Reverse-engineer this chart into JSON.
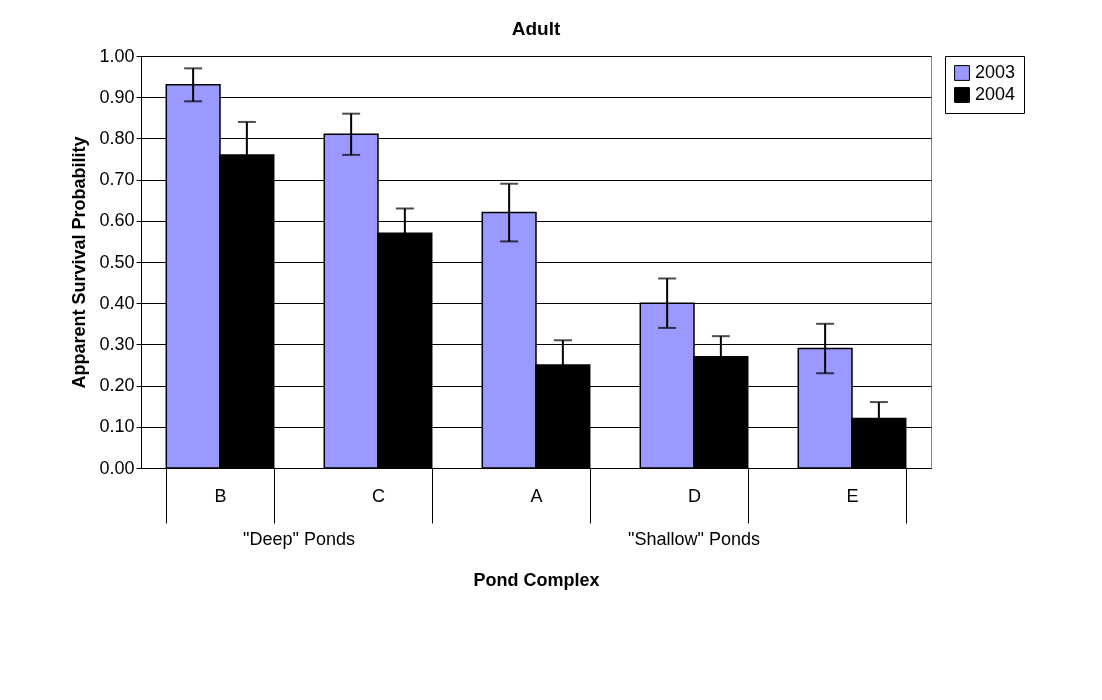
{
  "chart_data": {
    "type": "bar",
    "title": "Adult",
    "xlabel": "Pond Complex",
    "ylabel": "Apparent Survival Probability",
    "categories": [
      "B",
      "C",
      "A",
      "D",
      "E"
    ],
    "series": [
      {
        "name": "2003",
        "color": "#9999ff",
        "values": [
          0.93,
          0.81,
          0.62,
          0.4,
          0.29
        ],
        "errors": [
          0.04,
          0.05,
          0.07,
          0.06,
          0.06
        ]
      },
      {
        "name": "2004",
        "color": "#000000",
        "values": [
          0.76,
          0.57,
          0.25,
          0.27,
          0.12
        ],
        "errors": [
          0.08,
          0.06,
          0.06,
          0.05,
          0.04
        ]
      }
    ],
    "annotations": [
      "\"Deep\" Ponds",
      "\"Shallow\" Ponds"
    ],
    "ylim": [
      0,
      1
    ],
    "yticks": [
      {
        "value": 0,
        "label": "0.00"
      },
      {
        "value": 0.1,
        "label": "0.10"
      },
      {
        "value": 0.2,
        "label": "0.20"
      },
      {
        "value": 0.3,
        "label": "0.30"
      },
      {
        "value": 0.4,
        "label": "0.40"
      },
      {
        "value": 0.5,
        "label": "0.50"
      },
      {
        "value": 0.6,
        "label": "0.60"
      },
      {
        "value": 0.7,
        "label": "0.70"
      },
      {
        "value": 0.8,
        "label": "0.80"
      },
      {
        "value": 0.9,
        "label": "0.90"
      },
      {
        "value": 1,
        "label": "1.00"
      }
    ],
    "grid": "y",
    "legend": "right"
  }
}
